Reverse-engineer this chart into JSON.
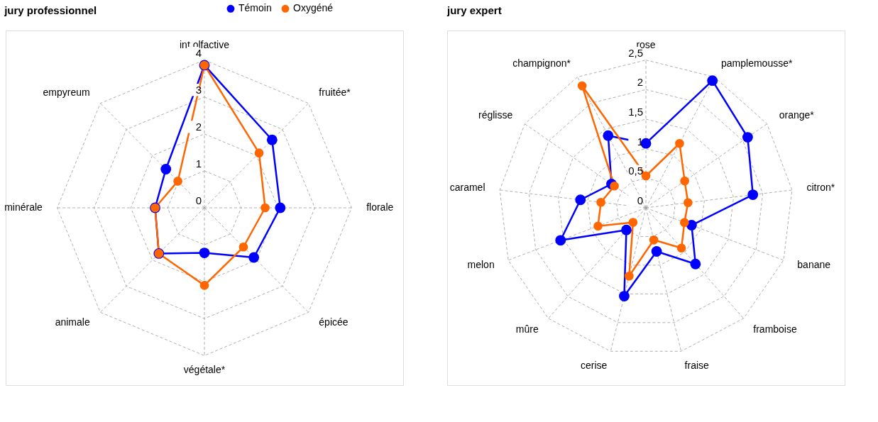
{
  "chart_data": [
    {
      "type": "radar",
      "title": "jury professionnel",
      "categories": [
        "int olfactive",
        "fruitée*",
        "florale",
        "épicée",
        "végétale*",
        "animale",
        "minérale",
        "empyreum"
      ],
      "ylim": [
        0,
        4
      ],
      "yticks": [
        0,
        1,
        2,
        3,
        4
      ],
      "grid": true,
      "legend": "top right",
      "marker": "circle",
      "series": [
        {
          "name": "Témoin",
          "color": "#0000ff",
          "values": [
            3.86,
            2.6,
            2.06,
            1.9,
            1.22,
            1.75,
            1.34,
            1.48
          ]
        },
        {
          "name": "Oxygéné",
          "color": "#ff6600",
          "values": [
            3.86,
            2.1,
            1.65,
            1.5,
            2.1,
            1.75,
            1.34,
            1.02
          ]
        }
      ]
    },
    {
      "type": "radar",
      "title": "jury expert",
      "categories": [
        "rose",
        "pamplemousse*",
        "orange*",
        "citron*",
        "banane",
        "framboise",
        "fraise",
        "cerise",
        "mûre",
        "melon",
        "caramel",
        "réglisse",
        "champignon*"
      ],
      "ylim": [
        0,
        2.5
      ],
      "yticks": [
        0,
        {
          "value": 0.5,
          "label": "0,5"
        },
        1,
        {
          "value": 1.5,
          "label": "1,5"
        },
        2,
        {
          "value": 2.5,
          "label": "2,5"
        }
      ],
      "grid": true,
      "legend": "top right",
      "marker": "circle",
      "series": [
        {
          "name": "Témoin",
          "color": "#0000ff",
          "values": [
            1.09,
            2.43,
            2.1,
            1.83,
            0.83,
            1.27,
            0.76,
            1.54,
            0.5,
            1.55,
            1.12,
            0.71,
            1.38
          ]
        },
        {
          "name": "Oxygéné",
          "color": "#ff6600",
          "values": [
            0.54,
            1.23,
            0.8,
            0.72,
            0.7,
            0.91,
            0.56,
            1.19,
            0.33,
            0.87,
            0.77,
            0.65,
            2.33
          ]
        }
      ]
    }
  ]
}
